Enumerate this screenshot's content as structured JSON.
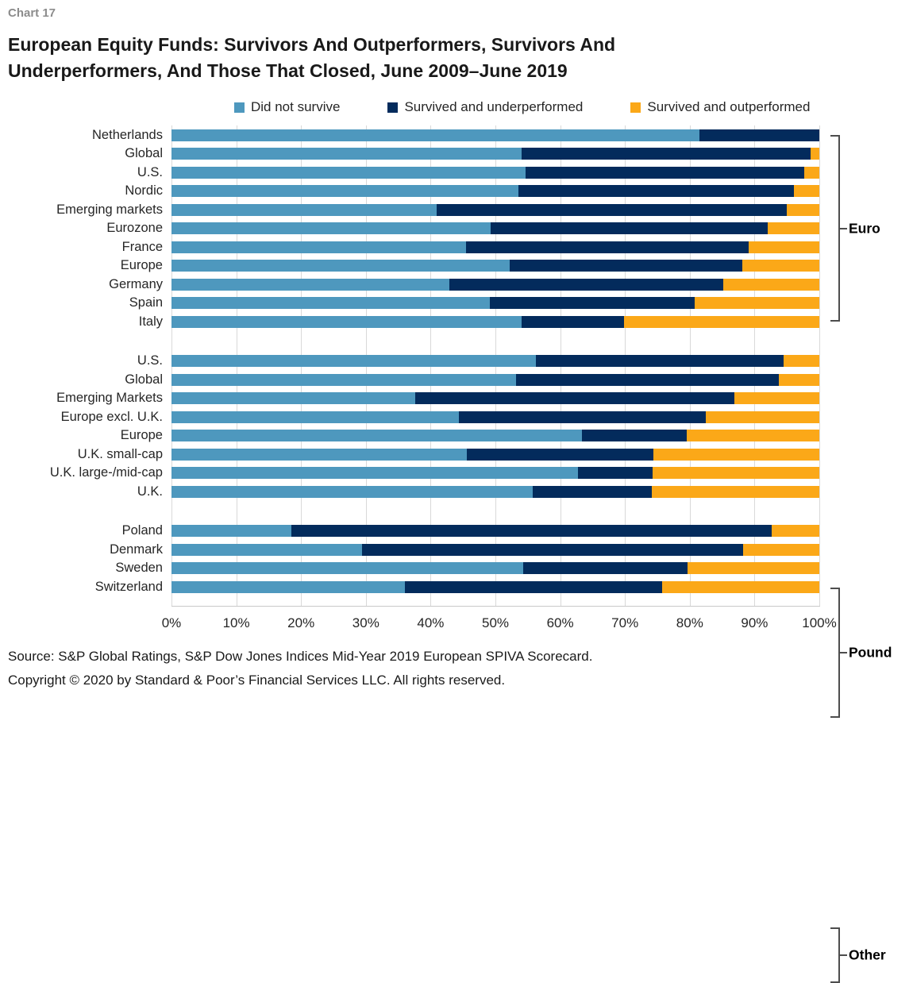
{
  "page": {
    "chart_label": "Chart 17",
    "title": "European Equity Funds: Survivors And Outperformers, Survivors And Underperformers, And Those That Closed, June 2009–June 2019",
    "source_line": "Source: S&P Global Ratings, S&P Dow Jones Indices Mid-Year 2019 European SPIVA Scorecard.",
    "copyright_line": "Copyright © 2020 by Standard & Poor’s Financial Services LLC. All rights reserved."
  },
  "colors": {
    "did_not_survive": "#4E98BE",
    "survived_underperformed": "#032B5C",
    "survived_outperformed": "#FBA818",
    "gridline": "#D9D9D9",
    "bracket": "#4d4d4d"
  },
  "chart_data": {
    "type": "bar",
    "orientation": "horizontal",
    "stacked": true,
    "unit": "%",
    "xlim": [
      0,
      100
    ],
    "grid": true,
    "legend_position": "top",
    "x_ticks": [
      "0%",
      "10%",
      "20%",
      "30%",
      "40%",
      "50%",
      "60%",
      "70%",
      "80%",
      "90%",
      "100%"
    ],
    "series": [
      {
        "name": "Did not survive",
        "color": "#4E98BE"
      },
      {
        "name": "Survived and underperformed",
        "color": "#032B5C"
      },
      {
        "name": "Survived and outperformed",
        "color": "#FBA818"
      }
    ],
    "groups": [
      {
        "label": "Euro",
        "rows": [
          {
            "category": "Netherlands",
            "values": [
              81.5,
              18.5,
              0.0
            ]
          },
          {
            "category": "Global",
            "values": [
              54.1,
              44.5,
              1.4
            ]
          },
          {
            "category": "U.S.",
            "values": [
              54.7,
              43.0,
              2.3
            ]
          },
          {
            "category": "Nordic",
            "values": [
              53.5,
              42.6,
              3.9
            ]
          },
          {
            "category": "Emerging markets",
            "values": [
              40.9,
              54.1,
              5.0
            ]
          },
          {
            "category": "Eurozone",
            "values": [
              49.3,
              42.7,
              8.0
            ]
          },
          {
            "category": "France",
            "values": [
              45.5,
              43.6,
              10.9
            ]
          },
          {
            "category": "Europe",
            "values": [
              52.2,
              35.9,
              11.9
            ]
          },
          {
            "category": "Germany",
            "values": [
              42.9,
              42.3,
              14.8
            ]
          },
          {
            "category": "Spain",
            "values": [
              49.1,
              31.7,
              19.2
            ]
          },
          {
            "category": "Italy",
            "values": [
              54.1,
              15.7,
              30.2
            ]
          }
        ]
      },
      {
        "label": "Pound",
        "rows": [
          {
            "category": "U.S.",
            "values": [
              56.3,
              38.2,
              5.5
            ]
          },
          {
            "category": "Global",
            "values": [
              53.2,
              40.6,
              6.2
            ]
          },
          {
            "category": "Emerging Markets",
            "values": [
              37.6,
              49.3,
              13.1
            ]
          },
          {
            "category": "Europe excl. U.K.",
            "values": [
              44.4,
              38.1,
              17.5
            ]
          },
          {
            "category": "Europe",
            "values": [
              63.4,
              16.1,
              20.5
            ]
          },
          {
            "category": "U.K. small-cap",
            "values": [
              45.6,
              28.8,
              25.6
            ]
          },
          {
            "category": "U.K. large-/mid-cap",
            "values": [
              62.8,
              11.5,
              25.7
            ]
          },
          {
            "category": "U.K.",
            "values": [
              55.8,
              18.4,
              25.8
            ]
          }
        ]
      },
      {
        "label": "Other",
        "rows": [
          {
            "category": "Poland",
            "values": [
              18.5,
              74.2,
              7.3
            ]
          },
          {
            "category": "Denmark",
            "values": [
              29.4,
              58.8,
              11.8
            ]
          },
          {
            "category": "Sweden",
            "values": [
              54.3,
              25.4,
              20.3
            ]
          },
          {
            "category": "Switzerland",
            "values": [
              36.0,
              39.7,
              24.3
            ]
          }
        ]
      }
    ]
  }
}
